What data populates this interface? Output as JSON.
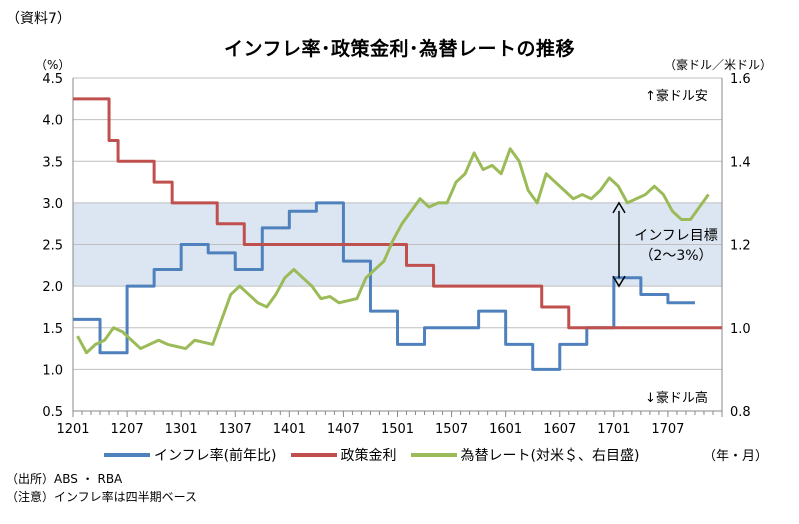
{
  "doc_label": "（資料7）",
  "title": "インフレ率･政策金利･為替レートの推移",
  "unit_left": "（%）",
  "unit_right": "（豪ドル／米ドル）",
  "x_unit": "（年・月）",
  "annotations": {
    "aud_up": "豪ドル安",
    "aud_down": "豪ドル高",
    "target_line1": "インフレ目標",
    "target_line2": "（2～3%）"
  },
  "notes": {
    "source": "（出所）ABS ・ RBA",
    "note": "（注意）インフレ率は四半期ベース"
  },
  "colors": {
    "inflation": "#4f81bd",
    "policy_rate": "#c0504d",
    "fx": "#9bbb59",
    "target_band": "#dce6f2",
    "grid": "#bfbfbf"
  },
  "chart_data": {
    "type": "line",
    "title": "インフレ率･政策金利･為替レートの推移",
    "x_tick_labels": [
      "1201",
      "1207",
      "1301",
      "1307",
      "1401",
      "1407",
      "1501",
      "1507",
      "1601",
      "1607",
      "1701",
      "1707"
    ],
    "x_start": "2012-01",
    "x_end": "2017-12",
    "y_left": {
      "label": "（%）",
      "ylim": [
        0.5,
        4.5
      ],
      "ticks": [
        "0.5",
        "1.0",
        "1.5",
        "2.0",
        "2.5",
        "3.0",
        "3.5",
        "4.0",
        "4.5"
      ]
    },
    "y_right": {
      "label": "（豪ドル／米ドル）",
      "ylim": [
        0.8,
        1.6
      ],
      "ticks": [
        "0.8",
        "1.0",
        "1.2",
        "1.4",
        "1.6"
      ]
    },
    "target_band": [
      2.0,
      3.0
    ],
    "grid": true,
    "legend_position": "bottom",
    "series": [
      {
        "name": "インフレ率(前年比)",
        "axis": "left",
        "step": true,
        "points": [
          [
            "2012-01",
            1.6
          ],
          [
            "2012-04",
            1.2
          ],
          [
            "2012-07",
            2.0
          ],
          [
            "2012-10",
            2.2
          ],
          [
            "2013-01",
            2.5
          ],
          [
            "2013-04",
            2.4
          ],
          [
            "2013-07",
            2.2
          ],
          [
            "2013-10",
            2.7
          ],
          [
            "2014-01",
            2.9
          ],
          [
            "2014-04",
            3.0
          ],
          [
            "2014-07",
            2.3
          ],
          [
            "2014-10",
            1.7
          ],
          [
            "2015-01",
            1.3
          ],
          [
            "2015-04",
            1.5
          ],
          [
            "2015-07",
            1.5
          ],
          [
            "2015-10",
            1.7
          ],
          [
            "2016-01",
            1.3
          ],
          [
            "2016-04",
            1.0
          ],
          [
            "2016-07",
            1.3
          ],
          [
            "2016-10",
            1.5
          ],
          [
            "2017-01",
            2.1
          ],
          [
            "2017-04",
            1.9
          ],
          [
            "2017-07",
            1.8
          ],
          [
            "2017-09",
            1.8
          ]
        ]
      },
      {
        "name": "政策金利",
        "axis": "left",
        "step": true,
        "points": [
          [
            "2012-01",
            4.25
          ],
          [
            "2012-05",
            3.75
          ],
          [
            "2012-06",
            3.5
          ],
          [
            "2012-10",
            3.25
          ],
          [
            "2012-12",
            3.0
          ],
          [
            "2013-05",
            2.75
          ],
          [
            "2013-08",
            2.5
          ],
          [
            "2015-02",
            2.25
          ],
          [
            "2015-05",
            2.0
          ],
          [
            "2016-05",
            1.75
          ],
          [
            "2016-08",
            1.5
          ],
          [
            "2017-12",
            1.5
          ]
        ]
      },
      {
        "name": "為替レート(対米＄、右目盛)",
        "axis": "right",
        "step": false,
        "points": [
          [
            "2012-01",
            0.98
          ],
          [
            "2012-02",
            0.94
          ],
          [
            "2012-03",
            0.96
          ],
          [
            "2012-04",
            0.97
          ],
          [
            "2012-05",
            1.0
          ],
          [
            "2012-06",
            0.99
          ],
          [
            "2012-07",
            0.97
          ],
          [
            "2012-08",
            0.95
          ],
          [
            "2012-09",
            0.96
          ],
          [
            "2012-10",
            0.97
          ],
          [
            "2012-11",
            0.96
          ],
          [
            "2012-12",
            0.955
          ],
          [
            "2013-01",
            0.95
          ],
          [
            "2013-02",
            0.97
          ],
          [
            "2013-03",
            0.965
          ],
          [
            "2013-04",
            0.96
          ],
          [
            "2013-05",
            1.02
          ],
          [
            "2013-06",
            1.08
          ],
          [
            "2013-07",
            1.1
          ],
          [
            "2013-08",
            1.08
          ],
          [
            "2013-09",
            1.06
          ],
          [
            "2013-10",
            1.05
          ],
          [
            "2013-11",
            1.08
          ],
          [
            "2013-12",
            1.12
          ],
          [
            "2014-01",
            1.14
          ],
          [
            "2014-02",
            1.12
          ],
          [
            "2014-03",
            1.1
          ],
          [
            "2014-04",
            1.07
          ],
          [
            "2014-05",
            1.075
          ],
          [
            "2014-06",
            1.06
          ],
          [
            "2014-07",
            1.065
          ],
          [
            "2014-08",
            1.07
          ],
          [
            "2014-09",
            1.12
          ],
          [
            "2014-10",
            1.14
          ],
          [
            "2014-11",
            1.16
          ],
          [
            "2014-12",
            1.21
          ],
          [
            "2015-01",
            1.25
          ],
          [
            "2015-02",
            1.28
          ],
          [
            "2015-03",
            1.31
          ],
          [
            "2015-04",
            1.29
          ],
          [
            "2015-05",
            1.3
          ],
          [
            "2015-06",
            1.3
          ],
          [
            "2015-07",
            1.35
          ],
          [
            "2015-08",
            1.37
          ],
          [
            "2015-09",
            1.42
          ],
          [
            "2015-10",
            1.38
          ],
          [
            "2015-11",
            1.39
          ],
          [
            "2015-12",
            1.37
          ],
          [
            "2016-01",
            1.43
          ],
          [
            "2016-02",
            1.4
          ],
          [
            "2016-03",
            1.33
          ],
          [
            "2016-04",
            1.3
          ],
          [
            "2016-05",
            1.37
          ],
          [
            "2016-06",
            1.35
          ],
          [
            "2016-07",
            1.33
          ],
          [
            "2016-08",
            1.31
          ],
          [
            "2016-09",
            1.32
          ],
          [
            "2016-10",
            1.31
          ],
          [
            "2016-11",
            1.33
          ],
          [
            "2016-12",
            1.36
          ],
          [
            "2017-01",
            1.34
          ],
          [
            "2017-02",
            1.3
          ],
          [
            "2017-03",
            1.31
          ],
          [
            "2017-04",
            1.32
          ],
          [
            "2017-05",
            1.34
          ],
          [
            "2017-06",
            1.32
          ],
          [
            "2017-07",
            1.28
          ],
          [
            "2017-08",
            1.26
          ],
          [
            "2017-09",
            1.26
          ],
          [
            "2017-10",
            1.29
          ],
          [
            "2017-11",
            1.32
          ]
        ]
      }
    ]
  }
}
